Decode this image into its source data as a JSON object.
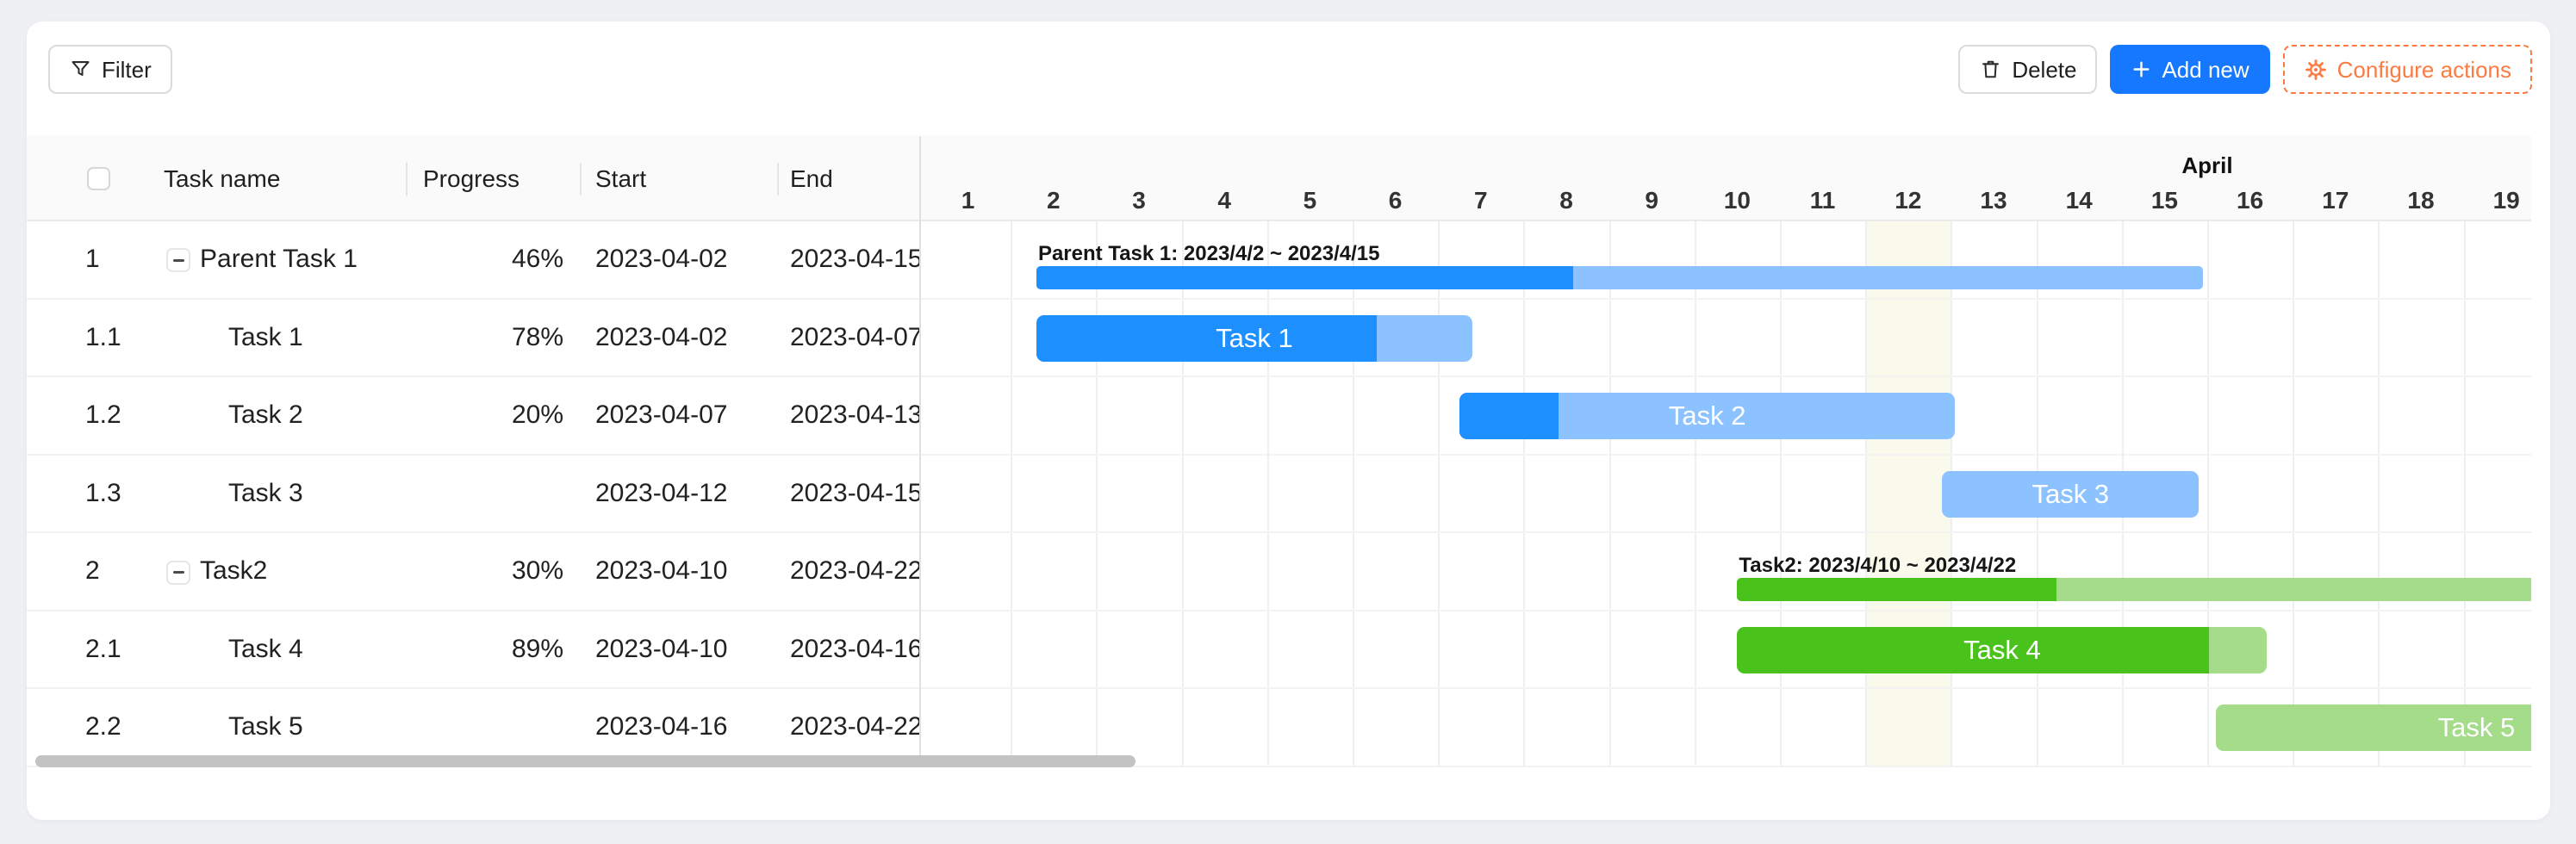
{
  "colors": {
    "page_bg": "#EEF0F4",
    "panel_bg": "#FFFFFF",
    "accent_blue": "#1677FF",
    "accent_orange": "#FB7B42",
    "bar_blue": "#1E8FFF",
    "bar_blue_light": "#8BC2FF",
    "bar_green": "#49C31B",
    "bar_green_light": "#A5DC89",
    "highlight_column": "#FAFAEC"
  },
  "toolbar": {
    "filter_label": "Filter",
    "delete_label": "Delete",
    "add_new_label": "Add new",
    "configure_label": "Configure actions"
  },
  "table": {
    "headers": {
      "task": "Task name",
      "progress": "Progress",
      "start": "Start",
      "end": "End"
    },
    "rows": [
      {
        "num": "1",
        "name": "Parent Task 1",
        "is_parent": true,
        "progress": "46%",
        "start": "2023-04-02",
        "end": "2023-04-15"
      },
      {
        "num": "1.1",
        "name": "Task 1",
        "is_parent": false,
        "progress": "78%",
        "start": "2023-04-02",
        "end": "2023-04-07"
      },
      {
        "num": "1.2",
        "name": "Task 2",
        "is_parent": false,
        "progress": "20%",
        "start": "2023-04-07",
        "end": "2023-04-13"
      },
      {
        "num": "1.3",
        "name": "Task 3",
        "is_parent": false,
        "progress": "",
        "start": "2023-04-12",
        "end": "2023-04-15"
      },
      {
        "num": "2",
        "name": "Task2",
        "is_parent": true,
        "progress": "30%",
        "start": "2023-04-10",
        "end": "2023-04-22"
      },
      {
        "num": "2.1",
        "name": "Task 4",
        "is_parent": false,
        "progress": "89%",
        "start": "2023-04-10",
        "end": "2023-04-16"
      },
      {
        "num": "2.2",
        "name": "Task 5",
        "is_parent": false,
        "progress": "",
        "start": "2023-04-16",
        "end": "2023-04-22"
      }
    ]
  },
  "timeline": {
    "month_label": "April",
    "days": [
      "1",
      "2",
      "3",
      "4",
      "5",
      "6",
      "7",
      "8",
      "9",
      "10",
      "11",
      "12",
      "13",
      "14",
      "15",
      "16",
      "17",
      "18",
      "19"
    ],
    "highlight_day": "12"
  },
  "gantt": {
    "bars": [
      {
        "row": 0,
        "kind": "summary",
        "palette": "blue",
        "caption": "Parent Task 1: 2023/4/2 ~ 2023/4/15",
        "start": 1.3,
        "end": 14.95,
        "progress": 0.46
      },
      {
        "row": 1,
        "kind": "task",
        "palette": "blue",
        "label": "Task 1",
        "start": 1.3,
        "end": 6.4,
        "progress": 0.78
      },
      {
        "row": 2,
        "kind": "task",
        "palette": "blue",
        "label": "Task 2",
        "start": 6.25,
        "end": 12.05,
        "progress": 0.2
      },
      {
        "row": 3,
        "kind": "task",
        "palette": "blue",
        "label": "Task 3",
        "start": 11.9,
        "end": 14.9,
        "progress": 0
      },
      {
        "row": 4,
        "kind": "summary",
        "palette": "green",
        "caption": "Task2: 2023/4/10 ~ 2023/4/22",
        "start": 9.5,
        "end": 21.95,
        "progress": 0.3
      },
      {
        "row": 5,
        "kind": "task",
        "palette": "green",
        "label": "Task 4",
        "start": 9.5,
        "end": 15.7,
        "progress": 0.89
      },
      {
        "row": 6,
        "kind": "task",
        "palette": "green",
        "label": "Task 5",
        "start": 15.1,
        "end": 22.1,
        "progress": 0,
        "label_day": 18.15
      }
    ]
  }
}
